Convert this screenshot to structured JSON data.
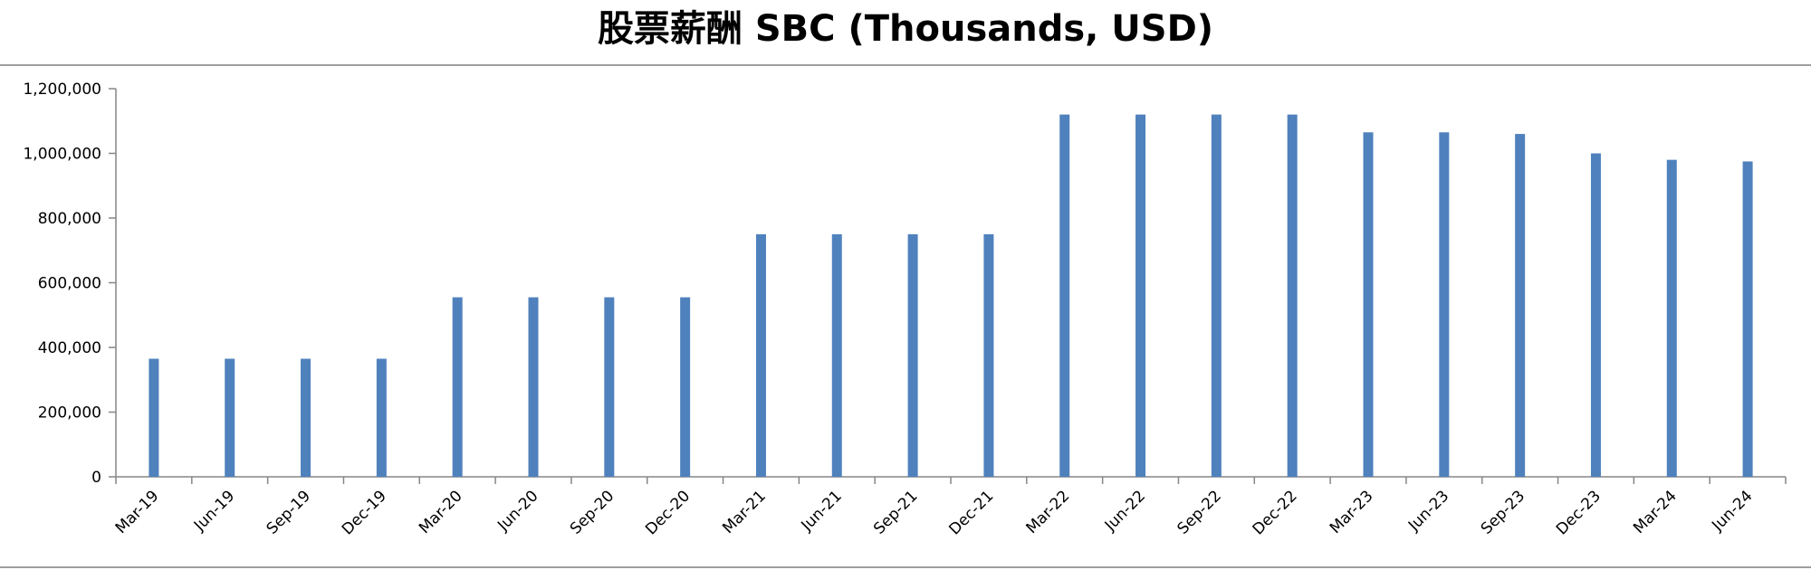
{
  "chart_data": {
    "type": "bar",
    "title": "股票薪酬 SBC (Thousands, USD)",
    "xlabel": "",
    "ylabel": "",
    "ylim": [
      0,
      1200000
    ],
    "y_ticks": [
      "0",
      "200,000",
      "400,000",
      "600,000",
      "800,000",
      "1,000,000",
      "1,200,000"
    ],
    "grid": false,
    "legend": "none",
    "bar_color": "#4F81BD",
    "categories": [
      "Mar-19",
      "Jun-19",
      "Sep-19",
      "Dec-19",
      "Mar-20",
      "Jun-20",
      "Sep-20",
      "Dec-20",
      "Mar-21",
      "Jun-21",
      "Sep-21",
      "Dec-21",
      "Mar-22",
      "Jun-22",
      "Sep-22",
      "Dec-22",
      "Mar-23",
      "Jun-23",
      "Sep-23",
      "Dec-23",
      "Mar-24",
      "Jun-24"
    ],
    "values": [
      365000,
      365000,
      365000,
      365000,
      555000,
      555000,
      555000,
      555000,
      750000,
      750000,
      750000,
      750000,
      1120000,
      1120000,
      1120000,
      1120000,
      1065000,
      1065000,
      1060000,
      1000000,
      980000,
      975000
    ]
  }
}
